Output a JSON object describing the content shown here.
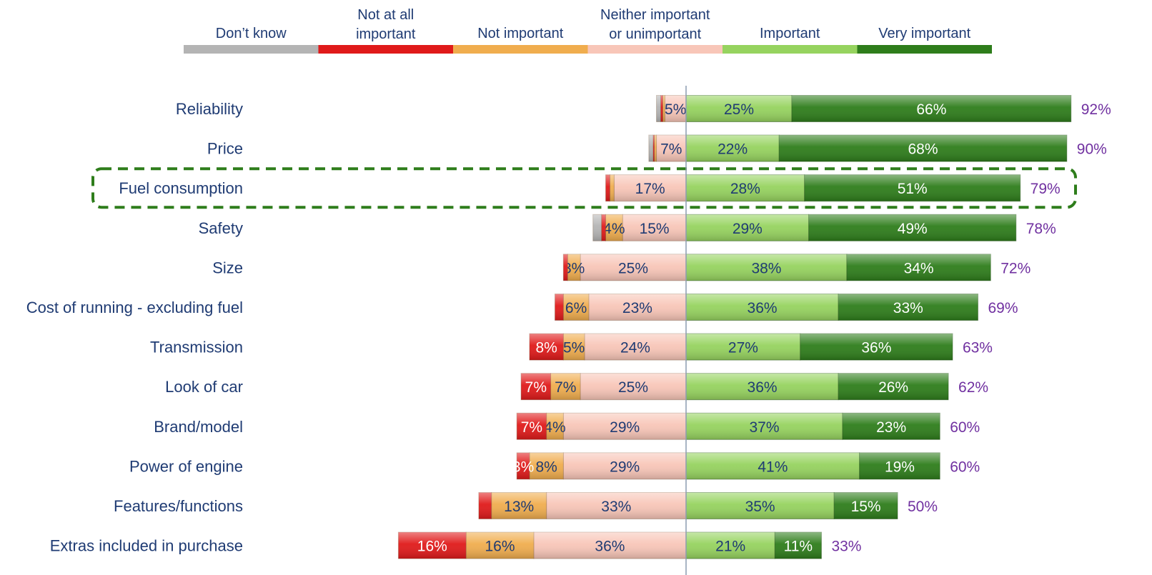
{
  "chart_data": {
    "type": "bar",
    "orientation": "horizontal",
    "stacking": "diverging",
    "legend_position": "top",
    "series": [
      {
        "name": "Don’t know",
        "color": "#b4b4b4",
        "side": "negative"
      },
      {
        "name": "Not at all important",
        "color": "#e01a1a",
        "side": "negative"
      },
      {
        "name": "Not important",
        "color": "#f0ad4e",
        "side": "negative"
      },
      {
        "name": "Neither important or unimportant",
        "color": "#f8c6b8",
        "side": "negative"
      },
      {
        "name": "Important",
        "color": "#96d35f",
        "side": "positive"
      },
      {
        "name": "Very important",
        "color": "#2e7d1b",
        "side": "positive"
      }
    ],
    "legend_lines": [
      [
        "Don’t know"
      ],
      [
        "Not at all",
        "important"
      ],
      [
        "Not important"
      ],
      [
        "Neither important",
        "or unimportant"
      ],
      [
        "Important"
      ],
      [
        "Very important"
      ]
    ],
    "categories": [
      {
        "name": "Reliability",
        "dont_know": 1,
        "not_at_all": 0.5,
        "not_important": 0.5,
        "neither": 5,
        "important": 25,
        "very_important": 66,
        "total": "92%",
        "seg_labels": [
          "",
          "",
          "",
          "5%",
          "25%",
          "66%"
        ]
      },
      {
        "name": "Price",
        "dont_know": 1,
        "not_at_all": 0.3,
        "not_important": 0.5,
        "neither": 7,
        "important": 22,
        "very_important": 68,
        "total": "90%",
        "seg_labels": [
          "",
          "",
          "",
          "7%",
          "22%",
          "68%"
        ]
      },
      {
        "name": "Fuel consumption",
        "dont_know": 0,
        "not_at_all": 1,
        "not_important": 1,
        "neither": 17,
        "important": 28,
        "very_important": 51,
        "total": "79%",
        "seg_labels": [
          "",
          "",
          "",
          "17%",
          "28%",
          "51%"
        ],
        "highlighted": true
      },
      {
        "name": "Safety",
        "dont_know": 2,
        "not_at_all": 1,
        "not_important": 4,
        "neither": 15,
        "important": 29,
        "very_important": 49,
        "total": "78%",
        "seg_labels": [
          "",
          "",
          "4%",
          "15%",
          "29%",
          "49%"
        ]
      },
      {
        "name": "Size",
        "dont_know": 0,
        "not_at_all": 1,
        "not_important": 3,
        "neither": 25,
        "important": 38,
        "very_important": 34,
        "total": "72%",
        "seg_labels": [
          "",
          "",
          "3%",
          "25%",
          "38%",
          "34%"
        ]
      },
      {
        "name": "Cost of running - excluding fuel",
        "dont_know": 0,
        "not_at_all": 2,
        "not_important": 6,
        "neither": 23,
        "important": 36,
        "very_important": 33,
        "total": "69%",
        "seg_labels": [
          "",
          "",
          "6%",
          "23%",
          "36%",
          "33%"
        ]
      },
      {
        "name": "Transmission",
        "dont_know": 0,
        "not_at_all": 8,
        "not_important": 5,
        "neither": 24,
        "important": 27,
        "very_important": 36,
        "total": "63%",
        "seg_labels": [
          "",
          "8%",
          "5%",
          "24%",
          "27%",
          "36%"
        ]
      },
      {
        "name": "Look of car",
        "dont_know": 0,
        "not_at_all": 7,
        "not_important": 7,
        "neither": 25,
        "important": 36,
        "very_important": 26,
        "total": "62%",
        "seg_labels": [
          "",
          "7%",
          "7%",
          "25%",
          "36%",
          "26%"
        ]
      },
      {
        "name": "Brand/model",
        "dont_know": 0,
        "not_at_all": 7,
        "not_important": 4,
        "neither": 29,
        "important": 37,
        "very_important": 23,
        "total": "60%",
        "seg_labels": [
          "",
          "7%",
          "4%",
          "29%",
          "37%",
          "23%"
        ]
      },
      {
        "name": "Power of engine",
        "dont_know": 0,
        "not_at_all": 3,
        "not_important": 8,
        "neither": 29,
        "important": 41,
        "very_important": 19,
        "total": "60%",
        "seg_labels": [
          "",
          "3%",
          "8%",
          "29%",
          "41%",
          "19%"
        ]
      },
      {
        "name": "Features/functions",
        "dont_know": 0,
        "not_at_all": 3,
        "not_important": 13,
        "neither": 33,
        "important": 35,
        "very_important": 15,
        "total": "50%",
        "seg_labels": [
          "",
          "",
          "13%",
          "33%",
          "35%",
          "15%"
        ]
      },
      {
        "name": "Extras included in purchase",
        "dont_know": 0,
        "not_at_all": 16,
        "not_important": 16,
        "neither": 36,
        "important": 21,
        "very_important": 11,
        "total": "33%",
        "seg_labels": [
          "",
          "16%",
          "16%",
          "36%",
          "21%",
          "11%"
        ]
      }
    ],
    "colors": {
      "category_label": "#1f3b73",
      "total_label": "#7030a0",
      "highlight_border": "#2e7d1b",
      "axis_line": "#8c9bb0"
    }
  }
}
